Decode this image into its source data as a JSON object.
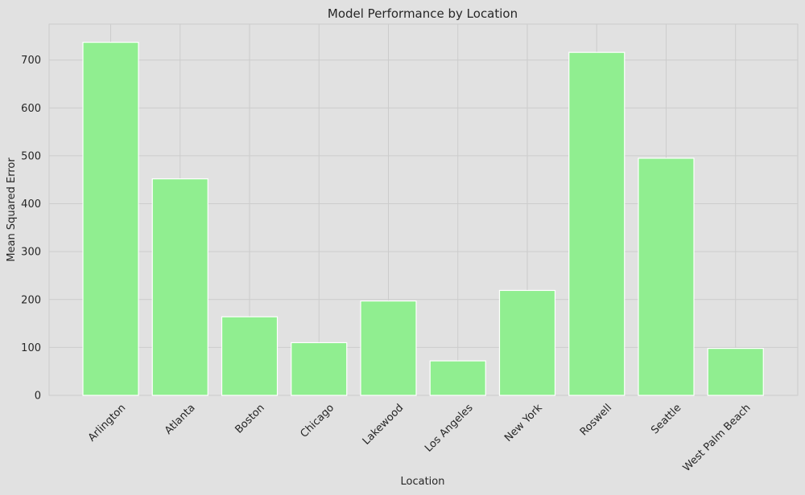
{
  "chart_data": {
    "type": "bar",
    "title": "Model Performance by Location",
    "xlabel": "Location",
    "ylabel": "Mean Squared Error",
    "categories": [
      "Arlington",
      "Atlanta",
      "Boston",
      "Chicago",
      "Lakewood",
      "Los Angeles",
      "New York",
      "Roswell",
      "Seattle",
      "West Palm Beach"
    ],
    "values": [
      737,
      452,
      164,
      110,
      197,
      72,
      219,
      716,
      495,
      98
    ],
    "ylim": [
      0,
      775
    ],
    "yticks": [
      0,
      100,
      200,
      300,
      400,
      500,
      600,
      700
    ],
    "grid": true,
    "legend": "none",
    "colors": {
      "bar_fill": "#90ee90",
      "bar_edge": "#ffffff",
      "background": "#e1e1e1",
      "grid": "#cccccc",
      "text": "#262626"
    }
  }
}
